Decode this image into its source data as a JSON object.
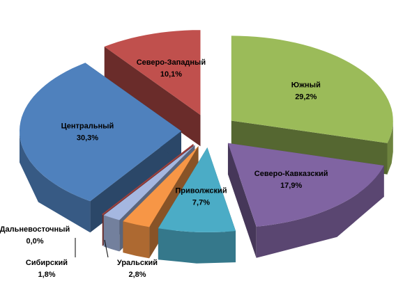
{
  "chart_data": {
    "type": "pie3d",
    "categories": [
      "Южный",
      "Северо-Кавказский",
      "Приволжский",
      "Уральский",
      "Сибирский",
      "Дальневосточный",
      "Центральный",
      "Северо-Западный"
    ],
    "values": [
      29.2,
      17.9,
      7.7,
      2.8,
      1.8,
      0.0,
      30.3,
      10.1
    ],
    "value_labels": [
      "29,2%",
      "17,9%",
      "7,7%",
      "2,8%",
      "1,8%",
      "0,0%",
      "30,3%",
      "10,1%"
    ],
    "colors": [
      "#9bbb59",
      "#8064a2",
      "#4bacc6",
      "#f79646",
      "#a5b7e0",
      "#c0504d",
      "#4f81bd",
      "#c0504d"
    ]
  }
}
